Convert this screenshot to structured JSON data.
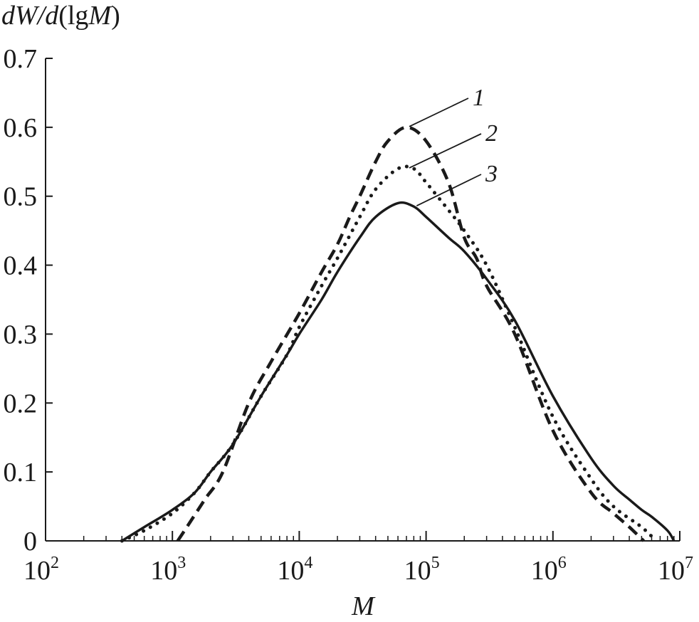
{
  "chart_data": {
    "type": "line",
    "title": "",
    "xlabel": "M",
    "ylabel": {
      "d1": "d",
      "W": "W",
      "slash": "/",
      "d2": "d",
      "open": "(lg",
      "M": "M",
      "close": ")"
    },
    "xscale": "log",
    "xlim": [
      100,
      10000000
    ],
    "ylim": [
      0,
      0.7
    ],
    "grid": false,
    "yticks": [
      "0",
      "0.1",
      "0.2",
      "0.3",
      "0.4",
      "0.5",
      "0.6",
      "0.7"
    ],
    "xticks": [
      {
        "base": "10",
        "exp": "2"
      },
      {
        "base": "10",
        "exp": "3"
      },
      {
        "base": "10",
        "exp": "4"
      },
      {
        "base": "10",
        "exp": "5"
      },
      {
        "base": "10",
        "exp": "6"
      },
      {
        "base": "10",
        "exp": "7"
      }
    ],
    "series": [
      {
        "name": "1",
        "style": "dashed",
        "x": [
          1100,
          1300,
          1800,
          2500,
          4000,
          6000,
          10000,
          15000,
          20000,
          25000,
          30000,
          40000,
          50000,
          70000,
          100000,
          150000,
          200000,
          250000,
          300000,
          500000,
          1000000,
          2000000,
          3000000,
          4000000,
          5200000
        ],
        "y": [
          0,
          0.02,
          0.06,
          0.1,
          0.2,
          0.26,
          0.33,
          0.39,
          0.43,
          0.47,
          0.5,
          0.55,
          0.58,
          0.6,
          0.58,
          0.52,
          0.44,
          0.41,
          0.37,
          0.3,
          0.16,
          0.07,
          0.04,
          0.02,
          0
        ]
      },
      {
        "name": "2",
        "style": "dotted",
        "x": [
          400,
          600,
          1000,
          1500,
          2000,
          3000,
          5000,
          8000,
          10000,
          15000,
          20000,
          30000,
          40000,
          60000,
          80000,
          100000,
          150000,
          200000,
          300000,
          500000,
          1000000,
          2000000,
          3000000,
          5000000,
          6500000
        ],
        "y": [
          0,
          0.015,
          0.04,
          0.07,
          0.1,
          0.14,
          0.21,
          0.27,
          0.31,
          0.37,
          0.41,
          0.47,
          0.51,
          0.54,
          0.54,
          0.52,
          0.48,
          0.45,
          0.4,
          0.31,
          0.18,
          0.09,
          0.05,
          0.02,
          0
        ]
      },
      {
        "name": "3",
        "style": "solid",
        "x": [
          400,
          600,
          1000,
          1500,
          2000,
          3000,
          5000,
          8000,
          10000,
          15000,
          20000,
          30000,
          40000,
          60000,
          80000,
          100000,
          150000,
          200000,
          300000,
          500000,
          1000000,
          2000000,
          3000000,
          4000000,
          5000000,
          6000000,
          8000000,
          9000000
        ],
        "y": [
          0,
          0.02,
          0.045,
          0.07,
          0.1,
          0.14,
          0.21,
          0.27,
          0.3,
          0.35,
          0.39,
          0.44,
          0.47,
          0.49,
          0.485,
          0.47,
          0.44,
          0.42,
          0.38,
          0.32,
          0.21,
          0.12,
          0.08,
          0.06,
          0.045,
          0.035,
          0.015,
          0
        ]
      }
    ],
    "annotations": [
      {
        "text": "1",
        "series": "1",
        "target_x": 70000,
        "target_y": 0.6
      },
      {
        "text": "2",
        "series": "2",
        "target_x": 70000,
        "target_y": 0.54
      },
      {
        "text": "3",
        "series": "3",
        "target_x": 80000,
        "target_y": 0.485
      }
    ]
  }
}
